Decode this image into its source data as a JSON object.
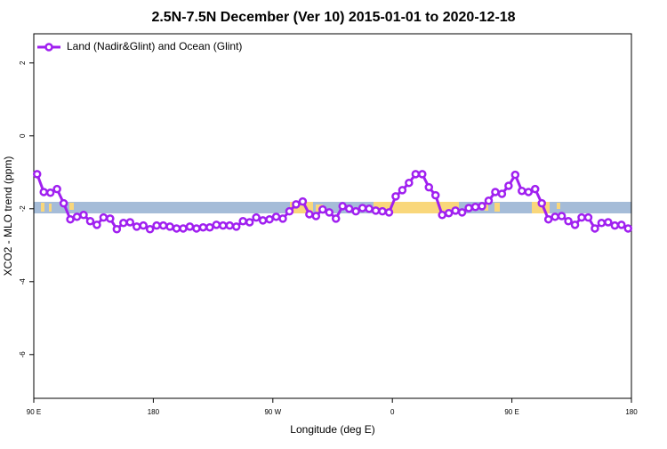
{
  "chart_data": {
    "type": "line",
    "title": "2.5N-7.5N December (Ver 10)   2015-01-01 to 2020-12-18",
    "x_label": "Longitude (deg E)",
    "y_label": "XCO2 - MLO trend (ppm)",
    "xlim": [
      90,
      540
    ],
    "ylim": [
      -7.2,
      2.8
    ],
    "xticks": [
      {
        "value": 90,
        "label": "90 E"
      },
      {
        "value": 180,
        "label": "180"
      },
      {
        "value": 270,
        "label": "90 W"
      },
      {
        "value": 360,
        "label": "0"
      },
      {
        "value": 450,
        "label": "90 E"
      },
      {
        "value": 540,
        "label": "180"
      }
    ],
    "yticks": [
      2,
      0,
      -2,
      -4,
      -6
    ],
    "legend": "top-left",
    "x": [
      92.5,
      97.5,
      102.5,
      107.5,
      112.5,
      117.5,
      122.5,
      127.5,
      132.5,
      137.5,
      142.5,
      147.5,
      152.5,
      157.5,
      162.5,
      167.5,
      172.5,
      177.5,
      182.5,
      187.5,
      192.5,
      197.5,
      202.5,
      207.5,
      212.5,
      217.5,
      222.5,
      227.5,
      232.5,
      237.5,
      242.5,
      247.5,
      252.5,
      257.5,
      262.5,
      267.5,
      272.5,
      277.5,
      282.5,
      287.5,
      292.5,
      297.5,
      302.5,
      307.5,
      312.5,
      317.5,
      322.5,
      327.5,
      332.5,
      337.5,
      342.5,
      347.5,
      352.5,
      357.5,
      362.5,
      367.5,
      372.5,
      377.5,
      382.5,
      387.5,
      392.5,
      397.5,
      402.5,
      407.5,
      412.5,
      417.5,
      422.5,
      427.5,
      432.5,
      437.5,
      442.5,
      447.5,
      452.5,
      457.5,
      462.5,
      467.5,
      472.5,
      477.5,
      482.5,
      487.5,
      492.5,
      497.5,
      502.5,
      507.5,
      512.5,
      517.5,
      522.5,
      527.5,
      532.5,
      537.5
    ],
    "series": [
      {
        "name": "Land (Nadir&Glint) and Ocean (Glint)",
        "color": "#a020f0",
        "values": [
          -1.05,
          -1.54,
          -1.56,
          -1.46,
          -1.85,
          -2.29,
          -2.22,
          -2.17,
          -2.34,
          -2.44,
          -2.24,
          -2.27,
          -2.56,
          -2.39,
          -2.37,
          -2.49,
          -2.46,
          -2.56,
          -2.46,
          -2.46,
          -2.49,
          -2.54,
          -2.54,
          -2.49,
          -2.54,
          -2.51,
          -2.51,
          -2.44,
          -2.46,
          -2.46,
          -2.49,
          -2.34,
          -2.37,
          -2.24,
          -2.32,
          -2.29,
          -2.22,
          -2.27,
          -2.07,
          -1.88,
          -1.8,
          -2.15,
          -2.2,
          -2.02,
          -2.1,
          -2.27,
          -1.93,
          -2.0,
          -2.07,
          -1.98,
          -2.0,
          -2.05,
          -2.07,
          -2.1,
          -1.66,
          -1.49,
          -1.29,
          -1.05,
          -1.05,
          -1.41,
          -1.63,
          -2.17,
          -2.12,
          -2.05,
          -2.1,
          -1.98,
          -1.95,
          -1.93,
          -1.78,
          -1.54,
          -1.59,
          -1.37,
          -1.07,
          -1.51,
          -1.54,
          -1.46,
          -1.85,
          -2.29,
          -2.22,
          -2.2,
          -2.34,
          -2.44,
          -2.24,
          -2.24,
          -2.54,
          -2.39,
          -2.37,
          -2.46,
          -2.44,
          -2.54
        ]
      }
    ]
  }
}
